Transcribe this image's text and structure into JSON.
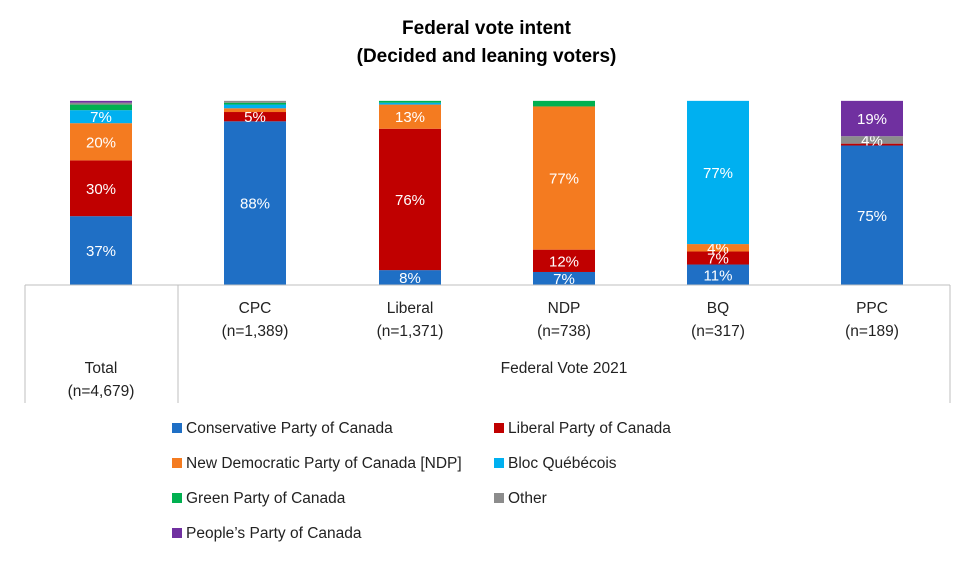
{
  "chart_data": {
    "type": "bar",
    "stacked": true,
    "title": "Federal vote intent",
    "subtitle": "(Decided and leaning voters)",
    "group_label": "Federal Vote 2021",
    "legend_position": "bottom",
    "grid": false,
    "ylim": [
      0,
      100
    ],
    "categories": [
      {
        "name": "Total",
        "n": "(n=4,679)"
      },
      {
        "name": "CPC",
        "n": "(n=1,389)"
      },
      {
        "name": "Liberal",
        "n": "(n=1,371)"
      },
      {
        "name": "NDP",
        "n": "(n=738)"
      },
      {
        "name": "BQ",
        "n": "(n=317)"
      },
      {
        "name": "PPC",
        "n": "(n=189)"
      }
    ],
    "series": [
      {
        "name": "Conservative Party of Canada",
        "color": "#1F6FC5",
        "values": [
          37,
          88,
          8,
          7,
          11,
          75
        ],
        "labels": [
          "37%",
          "88%",
          "8%",
          "7%",
          "11%",
          "75%"
        ]
      },
      {
        "name": "Liberal Party of Canada",
        "color": "#C00000",
        "values": [
          30,
          5,
          76,
          12,
          7,
          1
        ],
        "labels": [
          "30%",
          "5%",
          "76%",
          "12%",
          "7%",
          ""
        ]
      },
      {
        "name": "New Democratic Party of Canada [NDP]",
        "color": "#F47B20",
        "values": [
          20,
          2,
          13,
          77,
          4,
          0
        ],
        "labels": [
          "20%",
          "",
          "13%",
          "77%",
          "4%",
          ""
        ]
      },
      {
        "name": "Bloc Québécois",
        "color": "#00B0F0",
        "values": [
          7,
          2,
          1,
          0,
          77,
          0
        ],
        "labels": [
          "7%",
          "",
          "",
          "",
          "77%",
          ""
        ]
      },
      {
        "name": "Green Party of Canada",
        "color": "#00B050",
        "values": [
          3,
          1,
          1,
          3,
          0,
          0
        ],
        "labels": [
          "",
          "",
          "",
          "",
          "",
          ""
        ]
      },
      {
        "name": "Other",
        "color": "#8C8C8C",
        "values": [
          1,
          1,
          0,
          0,
          0,
          4
        ],
        "labels": [
          "",
          "",
          "",
          "",
          "",
          "4%"
        ]
      },
      {
        "name": "People’s Party of Canada",
        "color": "#7030A0",
        "values": [
          1,
          0,
          0,
          0,
          0,
          19
        ],
        "labels": [
          "",
          "",
          "",
          "",
          "",
          "19%"
        ]
      }
    ]
  }
}
